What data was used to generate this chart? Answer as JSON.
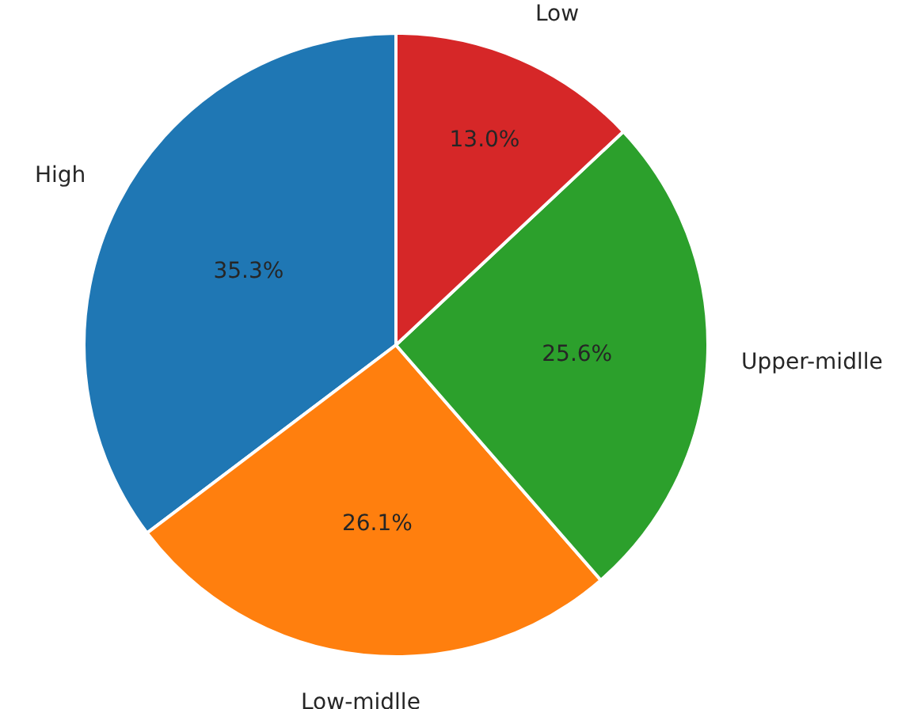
{
  "chart_data": {
    "type": "pie",
    "categories": [
      "High",
      "Low-midlle",
      "Upper-midlle",
      "Low"
    ],
    "values": [
      35.3,
      26.1,
      25.6,
      13.0
    ],
    "colors": [
      "#1f77b4",
      "#ff7f0e",
      "#2ca02c",
      "#d62728"
    ],
    "value_labels": [
      "35.3%",
      "26.1%",
      "25.6%",
      "13.0%"
    ],
    "legend": false
  }
}
